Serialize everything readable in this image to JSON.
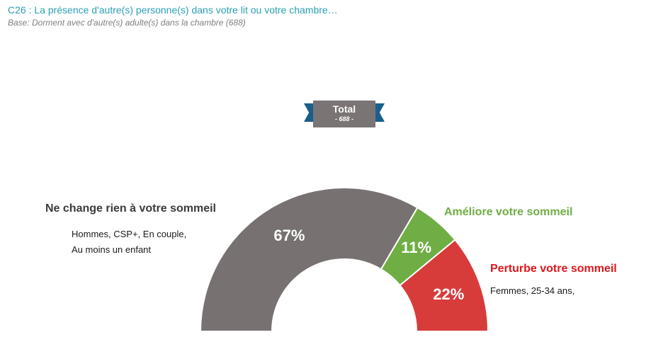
{
  "title": "C26 : La présence d'autre(s) personne(s) dans votre lit ou votre chambre…",
  "subtitle": "Base:  Dorment avec d'autre(s) adulte(s) dans la chambre (688)",
  "badge": {
    "label": "Total",
    "count": "- 688 -"
  },
  "colors": {
    "title": "#2a9fb4",
    "grey": "#777271",
    "green": "#6fae44",
    "red": "#d83c3a"
  },
  "chart_data": {
    "type": "pie",
    "variant": "semi-donut",
    "categories": [
      "Ne change rien à votre sommeil",
      "Améliore votre sommeil",
      "Perturbe votre sommeil"
    ],
    "values": [
      67,
      11,
      22
    ],
    "value_labels": [
      "67%",
      "11%",
      "22%"
    ],
    "colors": [
      "#777271",
      "#6fae44",
      "#d83c3a"
    ],
    "descriptions": [
      "Hommes, CSP+, En couple,\nAu moins un enfant",
      "",
      "Femmes, 25-34 ans,"
    ]
  }
}
